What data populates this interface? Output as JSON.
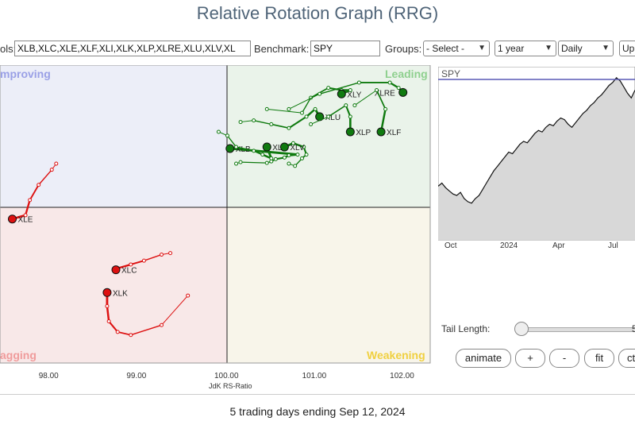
{
  "title": "Relative Rotation Graph (RRG)",
  "controls": {
    "symbols_label": "ols:",
    "symbols_value": "XLB,XLC,XLE,XLF,XLI,XLK,XLP,XLRE,XLU,XLV,XL",
    "benchmark_label": "Benchmark:",
    "benchmark_value": "SPY",
    "groups_label": "Groups:",
    "groups_value": "- Select -",
    "period_value": "1 year",
    "frequency_value": "Daily",
    "update_label": "Up"
  },
  "colors": {
    "leading": "#0f7a0f",
    "lagging": "#dd1111",
    "spy_line": "#111111",
    "benchmark_line": "#5a5ab5"
  },
  "quadrants": {
    "improving": "mproving",
    "leading": "Leading",
    "lagging": "agging",
    "weakening": "Weakening"
  },
  "chart_data": {
    "type": "scatter",
    "xlabel": "JdK RS-Ratio",
    "x_ticks": [
      "98.00",
      "99.00",
      "100.00",
      "101.00",
      "102.00"
    ],
    "xlim": [
      97.46,
      102.36
    ],
    "series": [
      {
        "name": "XLB",
        "color": "green",
        "tail": [
          [
            100.15,
            100.98
          ],
          [
            100.2,
            101.0
          ],
          [
            100.5,
            100.99
          ],
          [
            100.55,
            101.01
          ],
          [
            100.6,
            101.04
          ],
          [
            100.7,
            101.06
          ],
          [
            100.75,
            101.09
          ],
          [
            100.85,
            101.1
          ],
          [
            100.08,
            101.18
          ]
        ],
        "label": "XLB"
      },
      {
        "name": "XLI",
        "color": "green",
        "tail": [
          [
            99.95,
            101.4
          ],
          [
            100.05,
            101.35
          ],
          [
            100.15,
            101.2
          ],
          [
            100.35,
            101.15
          ],
          [
            100.45,
            101.1
          ],
          [
            100.55,
            101.05
          ],
          [
            100.5,
            101.2
          ]
        ],
        "label": "XLI"
      },
      {
        "name": "XLV",
        "color": "green",
        "tail": [
          [
            100.75,
            100.98
          ],
          [
            100.82,
            100.95
          ],
          [
            100.9,
            101.05
          ],
          [
            100.95,
            101.1
          ],
          [
            100.92,
            101.2
          ],
          [
            100.8,
            101.25
          ],
          [
            100.7,
            101.2
          ]
        ],
        "label": "XLV"
      },
      {
        "name": "XLU",
        "color": "green",
        "tail": [
          [
            100.2,
            101.53
          ],
          [
            100.35,
            101.55
          ],
          [
            100.55,
            101.5
          ],
          [
            100.75,
            101.45
          ],
          [
            100.95,
            101.6
          ],
          [
            101.05,
            101.7
          ],
          [
            101.1,
            101.6
          ]
        ],
        "label": "XLU"
      },
      {
        "name": "XLY",
        "color": "green",
        "tail": [
          [
            100.5,
            101.7
          ],
          [
            100.9,
            101.65
          ],
          [
            101.0,
            101.85
          ],
          [
            101.2,
            101.98
          ],
          [
            101.35,
            101.95
          ],
          [
            101.45,
            101.95
          ],
          [
            101.35,
            101.9
          ]
        ],
        "label": "XLY"
      },
      {
        "name": "XLRE",
        "color": "green",
        "tail": [
          [
            100.75,
            101.7
          ],
          [
            101.1,
            101.9
          ],
          [
            101.55,
            102.05
          ],
          [
            101.9,
            102.05
          ],
          [
            102.0,
            101.98
          ],
          [
            102.05,
            101.92
          ]
        ],
        "label": "XLRE"
      },
      {
        "name": "XLP",
        "color": "green",
        "tail": [
          [
            101.0,
            101.5
          ],
          [
            101.2,
            101.6
          ],
          [
            101.4,
            101.75
          ],
          [
            101.45,
            101.6
          ],
          [
            101.45,
            101.4
          ]
        ],
        "label": "XLP"
      },
      {
        "name": "XLF",
        "color": "green",
        "tail": [
          [
            101.5,
            101.75
          ],
          [
            101.75,
            101.95
          ],
          [
            101.85,
            101.7
          ],
          [
            101.8,
            101.4
          ]
        ],
        "label": "XLF"
      },
      {
        "name": "XLE",
        "color": "red",
        "tail": [
          [
            98.1,
            100.98
          ],
          [
            98.05,
            100.9
          ],
          [
            97.9,
            100.7
          ],
          [
            97.8,
            100.5
          ],
          [
            97.75,
            100.3
          ],
          [
            97.6,
            100.25
          ]
        ],
        "label": "XLE"
      },
      {
        "name": "XLC",
        "color": "red",
        "tail": [
          [
            99.4,
            99.8
          ],
          [
            99.3,
            99.78
          ],
          [
            99.1,
            99.7
          ],
          [
            98.95,
            99.65
          ],
          [
            98.8,
            99.6
          ],
          [
            98.78,
            99.58
          ]
        ],
        "label": "XLC"
      },
      {
        "name": "XLK",
        "color": "red",
        "tail": [
          [
            99.6,
            99.24
          ],
          [
            99.3,
            98.85
          ],
          [
            98.95,
            98.72
          ],
          [
            98.8,
            98.76
          ],
          [
            98.7,
            98.9
          ],
          [
            98.68,
            99.1
          ],
          [
            98.68,
            99.28
          ]
        ],
        "label": "XLK"
      }
    ]
  },
  "spy_chart": {
    "label": "SPY",
    "x_ticks": [
      "Oct",
      "2024",
      "Apr",
      "Jul"
    ],
    "values": [
      0.28,
      0.3,
      0.27,
      0.25,
      0.23,
      0.22,
      0.24,
      0.2,
      0.18,
      0.17,
      0.2,
      0.22,
      0.26,
      0.3,
      0.34,
      0.38,
      0.41,
      0.44,
      0.47,
      0.5,
      0.49,
      0.52,
      0.55,
      0.57,
      0.56,
      0.59,
      0.62,
      0.64,
      0.63,
      0.66,
      0.68,
      0.67,
      0.7,
      0.72,
      0.71,
      0.68,
      0.66,
      0.69,
      0.72,
      0.75,
      0.77,
      0.8,
      0.82,
      0.85,
      0.87,
      0.9,
      0.93,
      0.95,
      0.98,
      0.96,
      0.92,
      0.88,
      0.85,
      0.9
    ]
  },
  "tail": {
    "label": "Tail Length:",
    "value": "5"
  },
  "buttons": {
    "animate": "animate",
    "plus": "+",
    "minus": "-",
    "fit": "fit",
    "ctrl": "ct"
  },
  "footer": "5 trading days ending Sep 12, 2024"
}
